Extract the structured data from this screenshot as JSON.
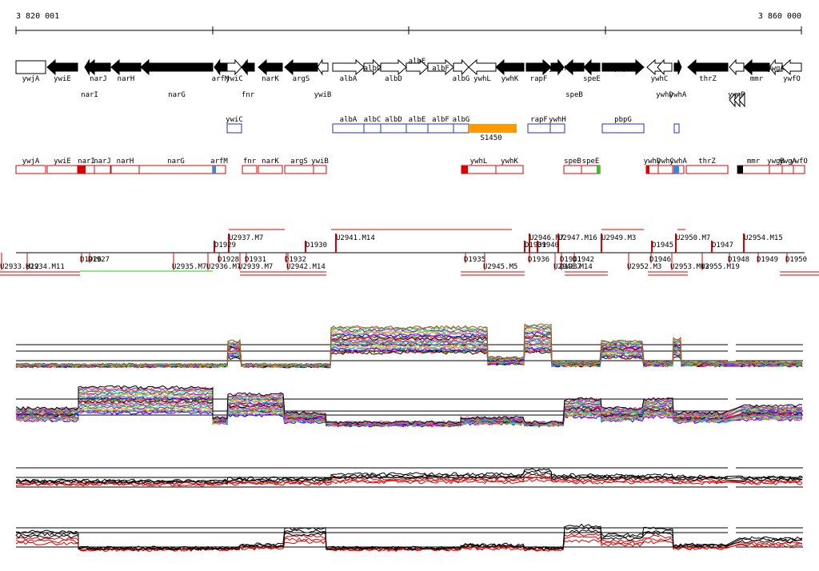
{
  "coordinates": {
    "start": "3 820 001",
    "end": "3 860 000"
  },
  "colors": {
    "gene_fill": "#000000",
    "gene_outline": "#000000",
    "operon_outline": "#2233bb",
    "segment_outline": "#dd0000",
    "highlight": "#ff9900",
    "probe": "#dd0000",
    "probe_black": "#000000",
    "marker_blue": "#3388dd",
    "marker_green": "#22cc22",
    "condition_ok": "#22cc22"
  },
  "genes": [
    {
      "name": "ywjA",
      "label_row": "top",
      "strand": "+",
      "filled": false
    },
    {
      "name": "ywiE",
      "label_row": "top",
      "strand": "-",
      "filled": true
    },
    {
      "name": "narJ",
      "label_row": "top",
      "strand": "-",
      "filled": true
    },
    {
      "name": "narI",
      "label_row": "bottom",
      "strand": "-",
      "filled": true
    },
    {
      "name": "narH",
      "label_row": "top",
      "strand": "-",
      "filled": true
    },
    {
      "name": "narG",
      "label_row": "bottom",
      "strand": "-",
      "filled": true
    },
    {
      "name": "arfM",
      "label_row": "top",
      "strand": "-",
      "filled": true
    },
    {
      "name": "ywiC",
      "label_row": "top",
      "strand": "+",
      "filled": false
    },
    {
      "name": "fnr",
      "label_row": "bottom",
      "strand": "-",
      "filled": true
    },
    {
      "name": "narK",
      "label_row": "top",
      "strand": "-",
      "filled": true
    },
    {
      "name": "argS",
      "label_row": "top",
      "strand": "-",
      "filled": true
    },
    {
      "name": "ywiB",
      "label_row": "bottom",
      "strand": "-",
      "filled": false
    },
    {
      "name": "albA",
      "label_row": "top",
      "strand": "+",
      "filled": false
    },
    {
      "name": "albC",
      "label_row": "upper",
      "strand": "+",
      "filled": false
    },
    {
      "name": "albD",
      "label_row": "top",
      "strand": "+",
      "filled": false
    },
    {
      "name": "albE",
      "label_row": "upper2",
      "strand": "+",
      "filled": false
    },
    {
      "name": "albF",
      "label_row": "upper",
      "strand": "+",
      "filled": false
    },
    {
      "name": "albG",
      "label_row": "top",
      "strand": "+",
      "filled": false
    },
    {
      "name": "ywhL",
      "label_row": "top",
      "strand": "-",
      "filled": false
    },
    {
      "name": "ywhK",
      "label_row": "top",
      "strand": "-",
      "filled": true
    },
    {
      "name": "rapF",
      "label_row": "top",
      "strand": "+",
      "filled": true
    },
    {
      "name": "ywhH",
      "label_row": "upper",
      "strand": "+",
      "filled": true
    },
    {
      "name": "speE",
      "label_row": "top",
      "strand": "-",
      "filled": true
    },
    {
      "name": "speB",
      "label_row": "bottom",
      "strand": "-",
      "filled": true
    },
    {
      "name": "pbpG",
      "label_row": "upper",
      "strand": "+",
      "filled": true
    },
    {
      "name": "ywhC",
      "label_row": "top",
      "strand": "-",
      "filled": false
    },
    {
      "name": "ywhD",
      "label_row": "bottom",
      "strand": "-",
      "filled": false
    },
    {
      "name": "ywhA",
      "label_row": "bottom",
      "strand": "+",
      "filled": true
    },
    {
      "name": "thrZ",
      "label_row": "top",
      "strand": "-",
      "filled": true
    },
    {
      "name": "mmr",
      "label_row": "top",
      "strand": "-",
      "filled": true
    },
    {
      "name": "ywgB",
      "label_row": "bottom",
      "strand": "-",
      "filled": false
    },
    {
      "name": "ywgA",
      "label_row": "upper",
      "strand": "-",
      "filled": false
    },
    {
      "name": "ywfO",
      "label_row": "top",
      "strand": "-",
      "filled": false
    }
  ],
  "operons": [
    {
      "label": "ywiC"
    },
    {
      "label": "albA"
    },
    {
      "label": "albC"
    },
    {
      "label": "albD"
    },
    {
      "label": "albE"
    },
    {
      "label": "albF"
    },
    {
      "label": "albG"
    },
    {
      "label": "rapF"
    },
    {
      "label": "ywhH"
    },
    {
      "label": "pbpG"
    }
  ],
  "highlight_region": {
    "label": "S1450"
  },
  "segments": [
    {
      "label": "ywjA"
    },
    {
      "label": "ywiE"
    },
    {
      "label": "narI"
    },
    {
      "label": "narJ"
    },
    {
      "label": "narH"
    },
    {
      "label": "narG"
    },
    {
      "label": "arfM"
    },
    {
      "label": "fnr"
    },
    {
      "label": "narK"
    },
    {
      "label": "argS"
    },
    {
      "label": "ywiB"
    },
    {
      "label": "ywhL"
    },
    {
      "label": "ywhK"
    },
    {
      "label": "speB"
    },
    {
      "label": "speE"
    },
    {
      "label": "ywhD"
    },
    {
      "label": "ywhC"
    },
    {
      "label": "ywhA"
    },
    {
      "label": "thrZ"
    },
    {
      "label": "mmr"
    },
    {
      "label": "ywgB"
    },
    {
      "label": "ywgA"
    },
    {
      "label": "ywfO"
    }
  ],
  "features_upper": [
    {
      "label": "U2937.M7"
    },
    {
      "label": "D1929"
    },
    {
      "label": "D1930"
    },
    {
      "label": "U2941.M14"
    },
    {
      "label": "U2946.M7"
    },
    {
      "label": "U2947.M16"
    },
    {
      "label": "U2949.M3"
    },
    {
      "label": "D1945"
    },
    {
      "label": "U2950.M7"
    },
    {
      "label": "D1947"
    },
    {
      "label": "U2954.M15"
    },
    {
      "label": "D1939"
    },
    {
      "label": "D1940"
    }
  ],
  "features_lower": [
    {
      "label": "U2933.M12"
    },
    {
      "label": "U2934.M11"
    },
    {
      "label": "D1926"
    },
    {
      "label": "D1927"
    },
    {
      "label": "U2935.M7"
    },
    {
      "label": "U2936.M7"
    },
    {
      "label": "D1928"
    },
    {
      "label": "D1931"
    },
    {
      "label": "U2939.M7"
    },
    {
      "label": "D1932"
    },
    {
      "label": "U2942.M14"
    },
    {
      "label": "D1935"
    },
    {
      "label": "U2945.M5"
    },
    {
      "label": "D1936"
    },
    {
      "label": "D1937"
    },
    {
      "label": "D1941"
    },
    {
      "label": "D1942"
    },
    {
      "label": "U2948.M14"
    },
    {
      "label": "U2952.M3"
    },
    {
      "label": "D1946"
    },
    {
      "label": "U2953.M13"
    },
    {
      "label": "U2955.M19"
    },
    {
      "label": "D1948"
    },
    {
      "label": "D1949"
    },
    {
      "label": "D1950"
    }
  ]
}
